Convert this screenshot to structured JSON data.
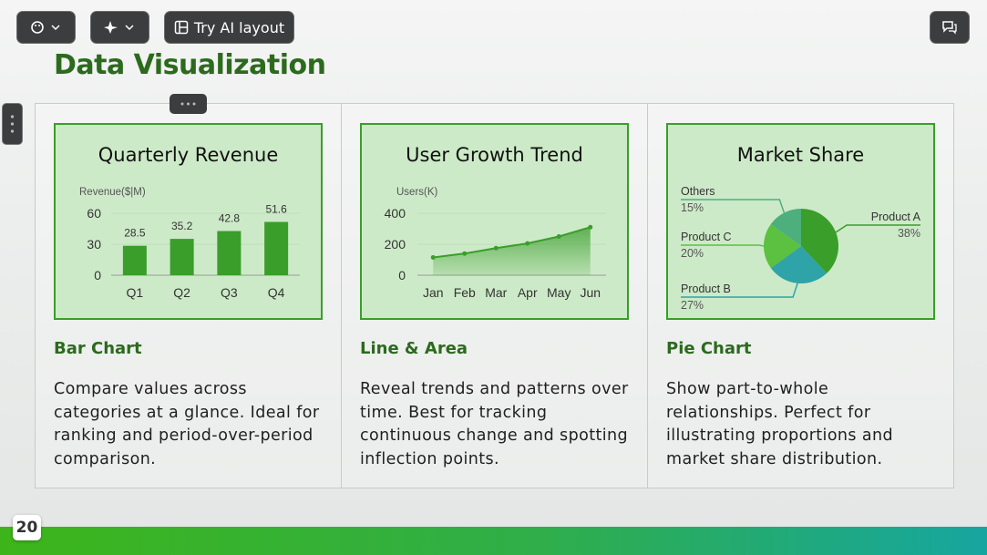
{
  "toolbar": {
    "ai_layout": "Try AI layout"
  },
  "title": "Data Visualization",
  "chart_data": [
    {
      "type": "bar",
      "title": "Quarterly Revenue",
      "y_label": "Revenue($|M)",
      "categories": [
        "Q1",
        "Q2",
        "Q3",
        "Q4"
      ],
      "values": [
        28.5,
        35.2,
        42.8,
        51.6
      ],
      "color": "#3a9e2a",
      "ylim": [
        0,
        60
      ],
      "yticks": [
        0,
        30,
        60
      ]
    },
    {
      "type": "line",
      "title": "User Growth Trend",
      "y_label": "Users(K)",
      "categories": [
        "Jan",
        "Feb",
        "Mar",
        "Apr",
        "May",
        "Jun"
      ],
      "values": [
        115,
        140,
        175,
        205,
        250,
        310
      ],
      "color": "#3a9e2a",
      "ylim": [
        0,
        400
      ],
      "yticks": [
        0,
        200,
        400
      ],
      "area": true
    },
    {
      "type": "pie",
      "title": "Market Share",
      "categories": [
        "Product A",
        "Product B",
        "Product C",
        "Others"
      ],
      "values": [
        38,
        27,
        20,
        15
      ],
      "value_labels": [
        "38%",
        "27%",
        "20%",
        "15%"
      ],
      "colors": [
        "#3a9e2a",
        "#2ea3a8",
        "#5cc040",
        "#4caf7d"
      ]
    }
  ],
  "cards": [
    {
      "heading": "Bar Chart",
      "text": "Compare values across categories at a glance. Ideal for ranking and period-over-period comparison."
    },
    {
      "heading": "Line & Area",
      "text": "Reveal trends and patterns over time. Best for tracking continuous change and spotting inflection points."
    },
    {
      "heading": "Pie Chart",
      "text": "Show part-to-whole relationships. Perfect for illustrating proportions and market share distribution."
    }
  ],
  "page_number": 20
}
